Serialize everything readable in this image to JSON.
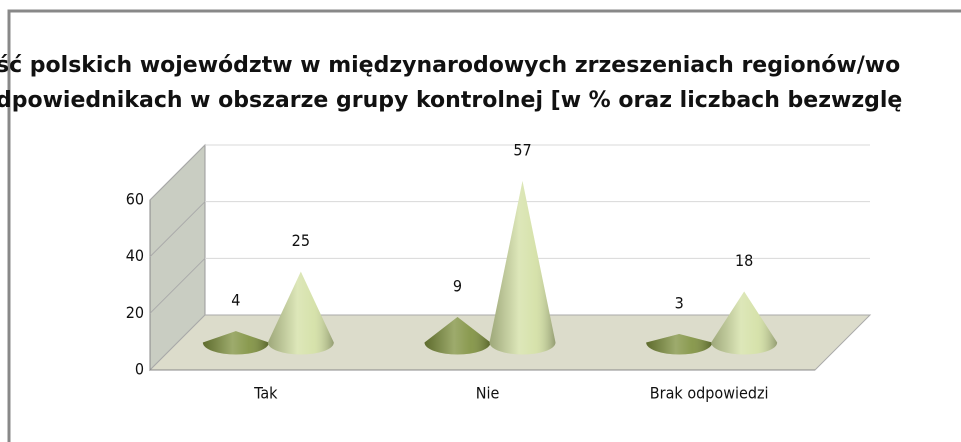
{
  "chart_data": {
    "type": "cone3d",
    "title": [
      "ść polskich województw w międzynarodowych zrzeszeniach regionów/wo",
      "dpowiednikach w obszarze grupy kontrolnej [w % oraz liczbach bezwzglę"
    ],
    "categories": [
      "Tak",
      "Nie",
      "Brak odpowiedzi"
    ],
    "series": [
      {
        "color": "#7d8f3c",
        "values": [
          4,
          9,
          3
        ]
      },
      {
        "color": "#d2dfa2",
        "values": [
          25,
          57,
          18
        ]
      }
    ],
    "ylim": [
      0,
      60
    ],
    "yticks": [
      0,
      20,
      40,
      60
    ],
    "grid": true
  }
}
